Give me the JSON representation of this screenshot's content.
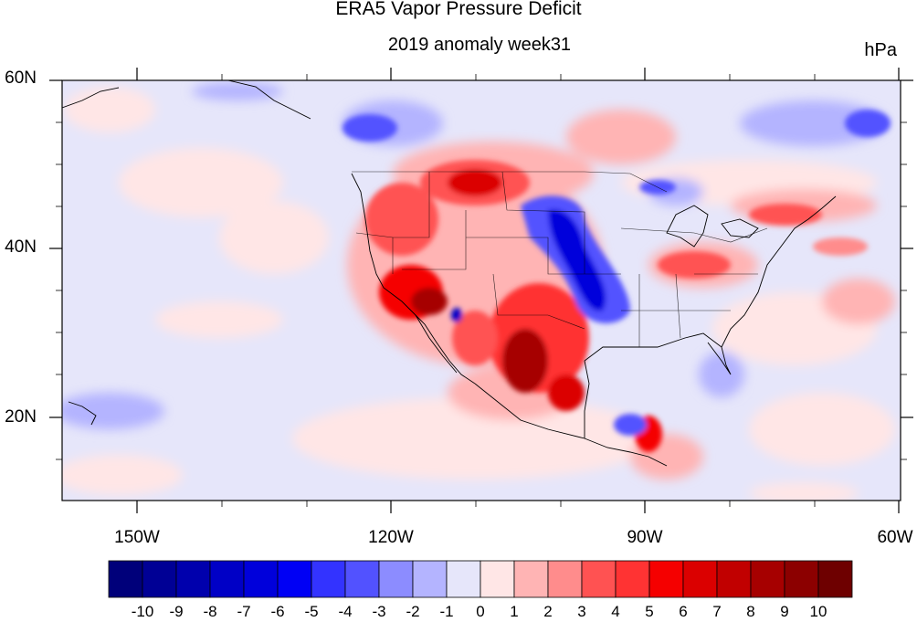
{
  "title": "ERA5 Vapor Pressure Deficit",
  "subtitle": "2019 anomaly week31",
  "units": "hPa",
  "lat_labels": [
    "60N",
    "40N",
    "20N"
  ],
  "lon_labels": [
    "150W",
    "120W",
    "90W",
    "60W"
  ],
  "colorbar": {
    "labels": [
      "-10",
      "-9",
      "-8",
      "-7",
      "-6",
      "-5",
      "-4",
      "-3",
      "-2",
      "-1",
      "0",
      "1",
      "2",
      "3",
      "4",
      "5",
      "6",
      "7",
      "8",
      "9",
      "10"
    ],
    "colors": [
      "#00007a",
      "#000095",
      "#0000ad",
      "#0000c6",
      "#0000db",
      "#0000f5",
      "#3333ff",
      "#5252ff",
      "#8c8cff",
      "#b4b4ff",
      "#e6e6fa",
      "#ffe6e6",
      "#ffb4b4",
      "#ff8c8c",
      "#ff5252",
      "#ff3333",
      "#f50000",
      "#db0000",
      "#c10000",
      "#a60000",
      "#8c0000",
      "#6e0000"
    ]
  }
}
